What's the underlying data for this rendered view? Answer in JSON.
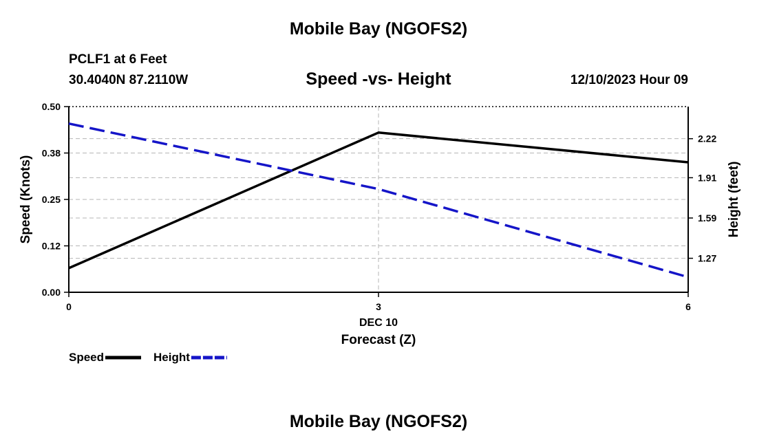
{
  "header": {
    "title": "Mobile Bay (NGOFS2)",
    "station_name": "PCLF1 at 6 Feet",
    "station_coords": "30.4040N  87.2110W",
    "chart_title": "Speed -vs- Height",
    "forecast_time": "12/10/2023 Hour 09"
  },
  "footer": {
    "title": "Mobile Bay (NGOFS2)"
  },
  "chart_data": {
    "type": "line",
    "title": "Speed -vs- Height",
    "x": [
      0,
      3,
      6
    ],
    "x_tick_labels": [
      "0",
      "3",
      "6"
    ],
    "x_date_label": "DEC 10",
    "xlabel": "Forecast (Z)",
    "xlim": [
      0,
      6
    ],
    "ylabel": "Speed (Knots)",
    "ylim": [
      0,
      0.5
    ],
    "y_ticks": [
      0.0,
      0.125,
      0.25,
      0.375,
      0.5
    ],
    "y_tick_labels": [
      "0.00",
      "0.12",
      "0.25",
      "0.38",
      "0.50"
    ],
    "y2label": "Height (feet)",
    "y2lim": [
      1.0,
      2.475
    ],
    "y2_ticks": [
      1.27,
      1.59,
      1.91,
      2.22
    ],
    "y2_tick_labels": [
      "1.27",
      "1.59",
      "1.91",
      "2.22"
    ],
    "grid": true,
    "legend_position": "bottom-left",
    "series": [
      {
        "name": "Speed",
        "axis": "left",
        "values": [
          0.065,
          0.43,
          0.35
        ],
        "color": "#000000",
        "dash": "solid"
      },
      {
        "name": "Height",
        "axis": "right",
        "values": [
          2.34,
          1.82,
          1.12
        ],
        "color": "#1515c8",
        "dash": "dashed"
      }
    ]
  }
}
